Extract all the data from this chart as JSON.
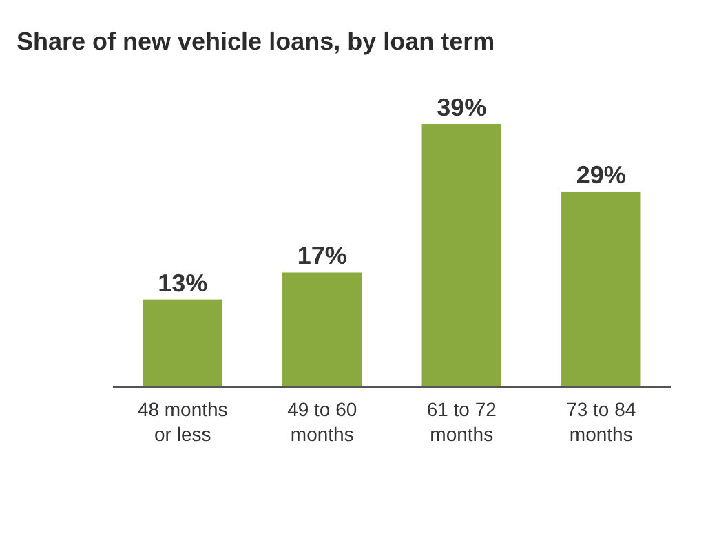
{
  "chart_data": {
    "type": "bar",
    "title": "Share of new vehicle loans, by loan term",
    "categories": [
      "48 months or less",
      "49 to 60 months",
      "61 to 72 months",
      "73 to 84 months"
    ],
    "values": [
      13,
      17,
      39,
      29
    ],
    "value_labels": [
      "13%",
      "17%",
      "39%",
      "29%"
    ],
    "color": "#8aaa3f",
    "grid": false
  }
}
